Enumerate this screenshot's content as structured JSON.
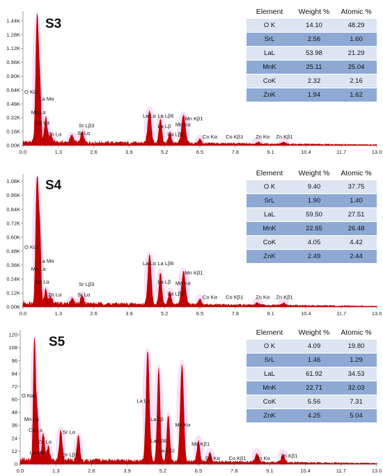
{
  "colors": {
    "spectrum": "#c00000",
    "peak_glow": "#e58be0",
    "axis": "#9c9c9c",
    "row_light": "#dce5f1",
    "row_dark": "#8eaad4"
  },
  "chart_data": [
    {
      "type": "line",
      "title": "S3",
      "xlim": [
        0,
        13.0
      ],
      "x_ticks": [
        "0.0",
        "1.3",
        "2.6",
        "3.9",
        "5.2",
        "6.5",
        "7.8",
        "9.1",
        "10.4",
        "11.7",
        "13.0"
      ],
      "y_ticks": [
        "0.00K",
        "0.16K",
        "0.32K",
        "0.48K",
        "0.64K",
        "0.80K",
        "0.96K",
        "1.12K",
        "1.28K",
        "1.44K"
      ],
      "ylim": [
        0,
        1.52
      ],
      "baseline": 0.05,
      "peaks": [
        [
          0.52,
          1.47,
          0.05
        ],
        [
          0.62,
          0.62,
          0.04
        ],
        [
          0.84,
          0.28,
          0.05
        ],
        [
          1.02,
          0.09,
          0.05
        ],
        [
          1.8,
          0.08,
          0.06
        ],
        [
          2.18,
          0.12,
          0.05
        ],
        [
          4.65,
          0.38,
          0.06
        ],
        [
          5.05,
          0.29,
          0.05
        ],
        [
          5.4,
          0.12,
          0.05
        ],
        [
          5.9,
          0.32,
          0.07
        ],
        [
          6.5,
          0.05,
          0.05
        ],
        [
          8.63,
          0.02,
          0.06
        ],
        [
          9.58,
          0.02,
          0.06
        ]
      ],
      "peak_labels": [
        {
          "text": "O  Kα1",
          "x": 0.05,
          "y": 0.6
        },
        {
          "text": "La Mα",
          "x": 0.6,
          "y": 0.52
        },
        {
          "text": "Mn Lα",
          "x": 0.3,
          "y": 0.36
        },
        {
          "text": "Co Lα",
          "x": 0.45,
          "y": 0.24
        },
        {
          "text": "Zn Lα",
          "x": 0.92,
          "y": 0.11
        },
        {
          "text": "Sr Lβ3",
          "x": 2.05,
          "y": 0.21
        },
        {
          "text": "Sr Lα",
          "x": 2.0,
          "y": 0.12
        },
        {
          "text": "La Lα",
          "x": 4.4,
          "y": 0.32
        },
        {
          "text": "La Lβ6",
          "x": 4.95,
          "y": 0.32
        },
        {
          "text": "La Lβ",
          "x": 4.95,
          "y": 0.2
        },
        {
          "text": "La Lβ2",
          "x": 5.32,
          "y": 0.11
        },
        {
          "text": "Mn Kα",
          "x": 5.6,
          "y": 0.22
        },
        {
          "text": "Mn Kβ1",
          "x": 5.95,
          "y": 0.29
        },
        {
          "text": "Co Kα",
          "x": 6.6,
          "y": 0.08
        },
        {
          "text": "Co Kβ1",
          "x": 7.45,
          "y": 0.08
        },
        {
          "text": "Zn Kα",
          "x": 8.55,
          "y": 0.08
        },
        {
          "text": "Zn Kβ1",
          "x": 9.3,
          "y": 0.08
        }
      ]
    },
    {
      "type": "line",
      "title": "S4",
      "xlim": [
        0,
        13.0
      ],
      "x_ticks": [
        "0.0",
        "1.3",
        "2.6",
        "3.9",
        "5.2",
        "6.5",
        "7.8",
        "9.1",
        "10.4",
        "11.7",
        "13.0"
      ],
      "y_ticks": [
        "0.00K",
        "0.12K",
        "0.24K",
        "0.36K",
        "0.48K",
        "0.60K",
        "0.72K",
        "0.84K",
        "0.96K",
        "1.08K"
      ],
      "ylim": [
        0,
        1.12
      ],
      "baseline": 0.04,
      "peaks": [
        [
          0.52,
          1.1,
          0.05
        ],
        [
          0.62,
          0.56,
          0.04
        ],
        [
          0.84,
          0.12,
          0.05
        ],
        [
          1.02,
          0.06,
          0.05
        ],
        [
          1.8,
          0.04,
          0.06
        ],
        [
          2.18,
          0.08,
          0.05
        ],
        [
          4.65,
          0.42,
          0.06
        ],
        [
          5.05,
          0.27,
          0.05
        ],
        [
          5.4,
          0.11,
          0.05
        ],
        [
          5.9,
          0.28,
          0.07
        ],
        [
          6.5,
          0.05,
          0.05
        ],
        [
          8.63,
          0.02,
          0.06
        ],
        [
          9.58,
          0.02,
          0.06
        ]
      ],
      "peak_labels": [
        {
          "text": "O  Kα1",
          "x": 0.05,
          "y": 0.5
        },
        {
          "text": "La Mα",
          "x": 0.6,
          "y": 0.38
        },
        {
          "text": "Mn Lα",
          "x": 0.3,
          "y": 0.31
        },
        {
          "text": "Co Lα",
          "x": 0.45,
          "y": 0.2
        },
        {
          "text": "Zn Lα",
          "x": 0.92,
          "y": 0.09
        },
        {
          "text": "Sr Lβ3",
          "x": 2.05,
          "y": 0.18
        },
        {
          "text": "Sr Lα",
          "x": 2.0,
          "y": 0.09
        },
        {
          "text": "La Lα",
          "x": 4.4,
          "y": 0.36
        },
        {
          "text": "La Lβ6",
          "x": 4.95,
          "y": 0.36
        },
        {
          "text": "La Lβ",
          "x": 4.95,
          "y": 0.2
        },
        {
          "text": "La Lβ2",
          "x": 5.32,
          "y": 0.1
        },
        {
          "text": "Mn Kα",
          "x": 5.6,
          "y": 0.19
        },
        {
          "text": "Mn Kβ1",
          "x": 5.95,
          "y": 0.28
        },
        {
          "text": "Co Kα",
          "x": 6.6,
          "y": 0.07
        },
        {
          "text": "Co Kβ1",
          "x": 7.45,
          "y": 0.07
        },
        {
          "text": "Zn Kα",
          "x": 8.55,
          "y": 0.07
        },
        {
          "text": "Zn Kβ1",
          "x": 9.3,
          "y": 0.07
        }
      ]
    },
    {
      "type": "line",
      "title": "S5",
      "xlim": [
        0,
        13.0
      ],
      "x_ticks": [
        "0.0",
        "1.3",
        "2.6",
        "3.9",
        "5.2",
        "6.5",
        "7.8",
        "9.1",
        "10.4",
        "11.7",
        "13.0"
      ],
      "y_ticks": [
        "0",
        "12",
        "24",
        "36",
        "48",
        "60",
        "72",
        "84",
        "96",
        "108",
        "120"
      ],
      "ylim": [
        0,
        122
      ],
      "baseline": 5,
      "peaks": [
        [
          0.52,
          112,
          0.04
        ],
        [
          0.62,
          46,
          0.04
        ],
        [
          0.84,
          24,
          0.05
        ],
        [
          1.02,
          12,
          0.05
        ],
        [
          1.48,
          28,
          0.05
        ],
        [
          2.12,
          22,
          0.05
        ],
        [
          4.65,
          101,
          0.06
        ],
        [
          5.05,
          86,
          0.05
        ],
        [
          5.4,
          42,
          0.05
        ],
        [
          5.9,
          90,
          0.06
        ],
        [
          6.5,
          20,
          0.05
        ],
        [
          6.92,
          8,
          0.05
        ],
        [
          8.63,
          8,
          0.06
        ],
        [
          9.58,
          7,
          0.06
        ]
      ],
      "peak_labels": [
        {
          "text": "O  Kα1",
          "x": 0.05,
          "y": 62
        },
        {
          "text": "Mn Lα",
          "x": 0.15,
          "y": 40
        },
        {
          "text": "Co Lα",
          "x": 0.3,
          "y": 30
        },
        {
          "text": "Zn Lα",
          "x": 0.65,
          "y": 19
        },
        {
          "text": "La Mα",
          "x": 0.35,
          "y": 9
        },
        {
          "text": "Sr Lα",
          "x": 1.55,
          "y": 28
        },
        {
          "text": "Sr Lβ3",
          "x": 1.55,
          "y": 7
        },
        {
          "text": "La Lα",
          "x": 4.25,
          "y": 57
        },
        {
          "text": "La Lβ",
          "x": 4.75,
          "y": 40
        },
        {
          "text": "La Lβ6",
          "x": 4.75,
          "y": 20
        },
        {
          "text": "La Lβ2",
          "x": 5.05,
          "y": 11
        },
        {
          "text": "Mn Kα",
          "x": 5.65,
          "y": 35
        },
        {
          "text": "Mn Kβ1",
          "x": 6.25,
          "y": 17
        },
        {
          "text": "Co Kα",
          "x": 6.75,
          "y": 4
        },
        {
          "text": "Co Kβ1",
          "x": 7.6,
          "y": 4
        },
        {
          "text": "Zn Kα",
          "x": 8.6,
          "y": 4
        },
        {
          "text": "Zn Kβ1",
          "x": 9.5,
          "y": 6
        }
      ]
    }
  ],
  "tables": [
    {
      "headers": [
        "Element",
        "Weight %",
        "Atomic %"
      ],
      "rows": [
        [
          "O K",
          "14.10",
          "48.29"
        ],
        [
          "SrL",
          "2.56",
          "1.60"
        ],
        [
          "LaL",
          "53.98",
          "21.29"
        ],
        [
          "MnK",
          "25.11",
          "25.04"
        ],
        [
          "CoK",
          "2.32",
          "2.16"
        ],
        [
          "ZnK",
          "1.94",
          "1.62"
        ]
      ]
    },
    {
      "headers": [
        "Element",
        "Weight %",
        "Atomic %"
      ],
      "rows": [
        [
          "O K",
          "9.40",
          "37.75"
        ],
        [
          "SrL",
          "1.90",
          "1.40"
        ],
        [
          "LaL",
          "59.50",
          "27.51"
        ],
        [
          "MnK",
          "22.65",
          "26.48"
        ],
        [
          "CoK",
          "4.05",
          "4.42"
        ],
        [
          "ZnK",
          "2.49",
          "2.44"
        ]
      ]
    },
    {
      "headers": [
        "Element",
        "Weight %",
        "Atomic %"
      ],
      "rows": [
        [
          "O K",
          "4.09",
          "19.80"
        ],
        [
          "SrL",
          "1.46",
          "1.29"
        ],
        [
          "LaL",
          "61.92",
          "34.53"
        ],
        [
          "MnK",
          "22.71",
          "32.03"
        ],
        [
          "CoK",
          "5.56",
          "7.31"
        ],
        [
          "ZnK",
          "4.25",
          "5.04"
        ]
      ]
    }
  ]
}
